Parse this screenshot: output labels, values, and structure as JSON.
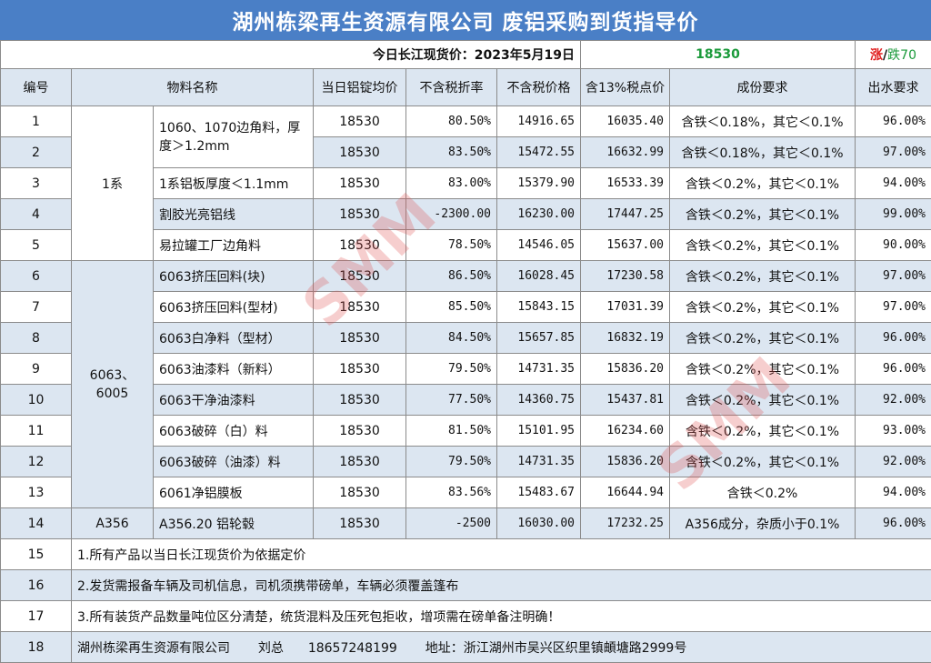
{
  "title": "湖州栋梁再生资源有限公司 废铝采购到货指导价",
  "price_bar": {
    "label": "今日长江现货价：2023年5月19日",
    "price": "18530",
    "change_up": "涨",
    "change_sep": "/",
    "change_down": "跌70"
  },
  "headers": [
    "编号",
    "物料名称",
    "当日铝锭均价",
    "不含税折率",
    "不含税价格",
    "含13%税点价",
    "成份要求",
    "出水要求"
  ],
  "groups": [
    "1系",
    "6063、6005",
    "A356"
  ],
  "rows": [
    {
      "no": "1",
      "name": "1060、1070边角料，厚度＞1.2mm",
      "avg": "18530",
      "rate": "80.50%",
      "price": "14916.65",
      "tax": "16035.40",
      "comp": "含铁＜0.18%，其它＜0.1%",
      "water": "96.00%"
    },
    {
      "no": "2",
      "name": "",
      "avg": "18530",
      "rate": "83.50%",
      "price": "15472.55",
      "tax": "16632.99",
      "comp": "含铁＜0.18%，其它＜0.1%",
      "water": "97.00%"
    },
    {
      "no": "3",
      "name": "1系铝板厚度＜1.1mm",
      "avg": "18530",
      "rate": "83.00%",
      "price": "15379.90",
      "tax": "16533.39",
      "comp": "含铁＜0.2%，其它＜0.1%",
      "water": "94.00%"
    },
    {
      "no": "4",
      "name": "割胶光亮铝线",
      "avg": "18530",
      "rate": "-2300.00",
      "price": "16230.00",
      "tax": "17447.25",
      "comp": "含铁＜0.2%，其它＜0.1%",
      "water": "99.00%"
    },
    {
      "no": "5",
      "name": "易拉罐工厂边角料",
      "avg": "18530",
      "rate": "78.50%",
      "price": "14546.05",
      "tax": "15637.00",
      "comp": "含铁＜0.2%，其它＜0.1%",
      "water": "90.00%"
    },
    {
      "no": "6",
      "name": "6063挤压回料(块)",
      "avg": "18530",
      "rate": "86.50%",
      "price": "16028.45",
      "tax": "17230.58",
      "comp": "含铁＜0.2%，其它＜0.1%",
      "water": "97.00%"
    },
    {
      "no": "7",
      "name": "6063挤压回料(型材)",
      "avg": "18530",
      "rate": "85.50%",
      "price": "15843.15",
      "tax": "17031.39",
      "comp": "含铁＜0.2%，其它＜0.1%",
      "water": "97.00%"
    },
    {
      "no": "8",
      "name": "6063白净料（型材）",
      "avg": "18530",
      "rate": "84.50%",
      "price": "15657.85",
      "tax": "16832.19",
      "comp": "含铁＜0.2%，其它＜0.1%",
      "water": "96.00%"
    },
    {
      "no": "9",
      "name": "6063油漆料（新料）",
      "avg": "18530",
      "rate": "79.50%",
      "price": "14731.35",
      "tax": "15836.20",
      "comp": "含铁＜0.2%，其它＜0.1%",
      "water": "96.00%"
    },
    {
      "no": "10",
      "name": "6063干净油漆料",
      "avg": "18530",
      "rate": "77.50%",
      "price": "14360.75",
      "tax": "15437.81",
      "comp": "含铁＜0.2%，其它＜0.1%",
      "water": "92.00%"
    },
    {
      "no": "11",
      "name": "6063破碎（白）料",
      "avg": "18530",
      "rate": "81.50%",
      "price": "15101.95",
      "tax": "16234.60",
      "comp": "含铁＜0.2%，其它＜0.1%",
      "water": "93.00%"
    },
    {
      "no": "12",
      "name": "6063破碎（油漆）料",
      "avg": "18530",
      "rate": "79.50%",
      "price": "14731.35",
      "tax": "15836.20",
      "comp": "含铁＜0.2%，其它＜0.1%",
      "water": "92.00%"
    },
    {
      "no": "13",
      "name": "6061净铝膜板",
      "avg": "18530",
      "rate": "83.56%",
      "price": "15483.67",
      "tax": "16644.94",
      "comp": "含铁＜0.2%",
      "water": "94.00%"
    },
    {
      "no": "14",
      "name": "A356.20 铝轮毂",
      "avg": "18530",
      "rate": "-2500",
      "price": "16030.00",
      "tax": "17232.25",
      "comp": "A356成分，杂质小于0.1%",
      "water": "96.00%"
    }
  ],
  "notes": [
    {
      "no": "15",
      "text": "1.所有产品以当日长江现货价为依据定价"
    },
    {
      "no": "16",
      "text": "2.发货需报备车辆及司机信息，司机须携带磅单，车辆必须覆盖篷布"
    },
    {
      "no": "17",
      "text": "3.所有装货产品数量吨位区分清楚，统货混料及压死包拒收，增项需在磅单备注明确！"
    }
  ],
  "footer": {
    "no": "18",
    "company": "湖州栋梁再生资源有限公司",
    "contact": "刘总",
    "phone": "18657248199",
    "address": "地址：浙江湖州市吴兴区织里镇頔塘路2999号"
  },
  "watermark": "SMM"
}
